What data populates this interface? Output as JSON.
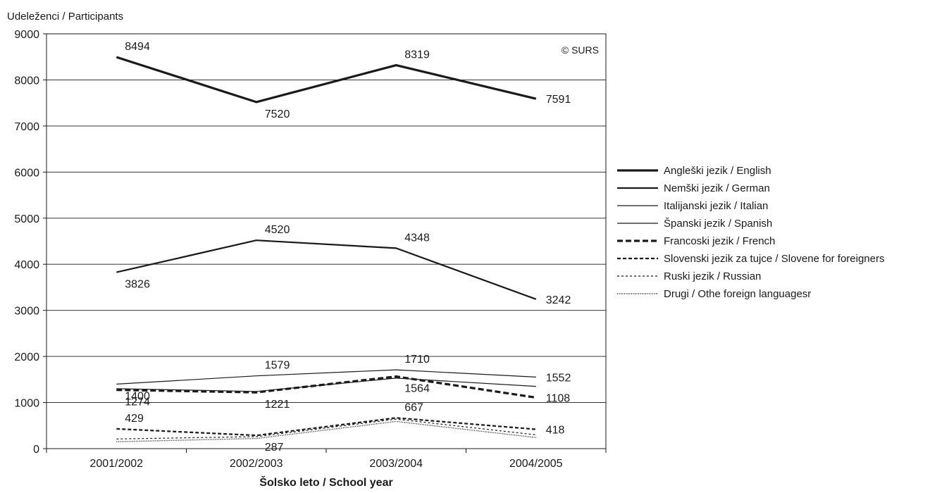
{
  "chart_data": {
    "type": "line",
    "title": "",
    "ylabel": "Udeleženci / Participants",
    "xlabel": "Šolsko leto / School year",
    "watermark": "© SURS",
    "categories": [
      "2001/2002",
      "2002/2003",
      "2003/2004",
      "2004/2005"
    ],
    "ylim": [
      0,
      9000
    ],
    "yticks": [
      0,
      1000,
      2000,
      3000,
      4000,
      5000,
      6000,
      7000,
      8000,
      9000
    ],
    "grid": true,
    "legend_position": "right",
    "series": [
      {
        "name": "Angleški jezik / English",
        "values": [
          8494,
          7520,
          8319,
          7591
        ],
        "labels": [
          "8494",
          "7520",
          "8319",
          "7591"
        ],
        "style": "solid-thick",
        "color": "#1a1a1a"
      },
      {
        "name": "Nemški jezik / German",
        "values": [
          3826,
          4520,
          4348,
          3242
        ],
        "labels": [
          "3826",
          "4520",
          "4348",
          "3242"
        ],
        "style": "solid-medium",
        "color": "#1a1a1a"
      },
      {
        "name": "Italijanski jezik / Italian",
        "values": [
          1400,
          1579,
          1710,
          1552
        ],
        "labels": [
          "1400",
          "1579",
          "1710",
          "1552"
        ],
        "style": "solid-thin",
        "color": "#1a1a1a"
      },
      {
        "name": "Španski jezik / Spanish",
        "values": [
          1300,
          1240,
          1530,
          1350
        ],
        "labels": [
          "",
          "",
          "",
          ""
        ],
        "style": "solid-thin",
        "color": "#1a1a1a"
      },
      {
        "name": "Francoski jezik / French",
        "values": [
          1274,
          1221,
          1564,
          1108
        ],
        "labels": [
          "1274",
          "1221",
          "1564",
          "1108"
        ],
        "style": "dash-thick",
        "color": "#1a1a1a"
      },
      {
        "name": "Slovenski jezik za tujce / Slovene for foreigners",
        "values": [
          429,
          287,
          667,
          418
        ],
        "labels": [
          "429",
          "287",
          "667",
          "418"
        ],
        "style": "dash-medium",
        "color": "#1a1a1a"
      },
      {
        "name": "Ruski jezik / Russian",
        "values": [
          210,
          260,
          640,
          300
        ],
        "labels": [
          "",
          "",
          "",
          ""
        ],
        "style": "dash-thin",
        "color": "#1a1a1a"
      },
      {
        "name": "Drugi / Othe foreign languagesr",
        "values": [
          150,
          220,
          590,
          240
        ],
        "labels": [
          "",
          "",
          "",
          ""
        ],
        "style": "dotted",
        "color": "#1a1a1a"
      }
    ]
  }
}
